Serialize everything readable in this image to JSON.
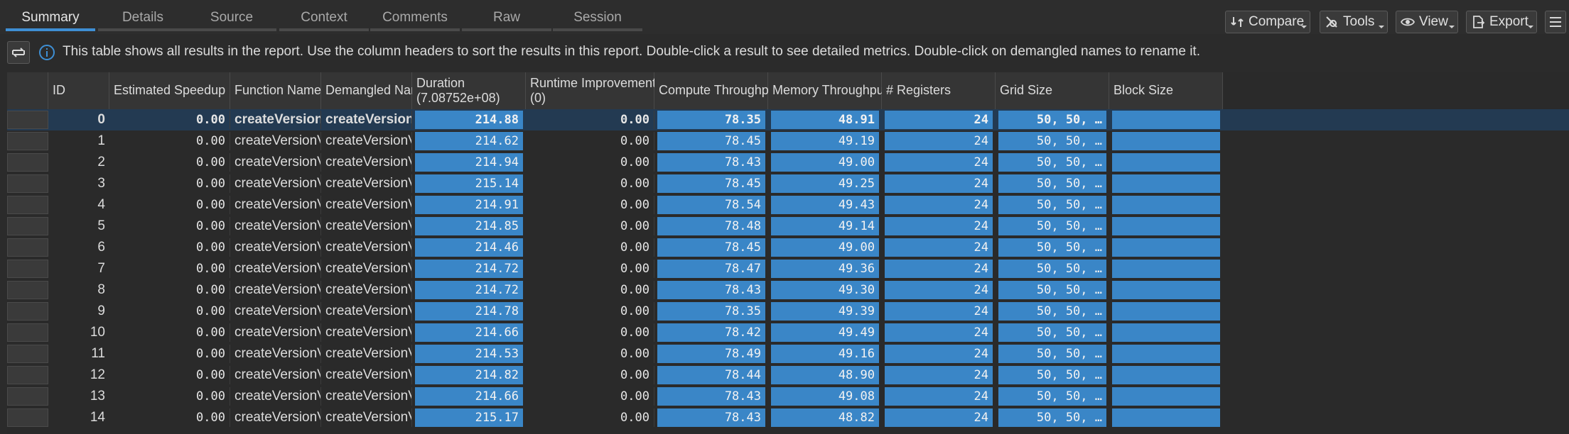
{
  "tabs": [
    {
      "label": "Summary",
      "active": true
    },
    {
      "label": "Details",
      "active": false
    },
    {
      "label": "Source",
      "active": false
    },
    {
      "label": "Context",
      "active": false
    },
    {
      "label": "Comments",
      "active": false
    },
    {
      "label": "Raw",
      "active": false
    },
    {
      "label": "Session",
      "active": false
    }
  ],
  "toolbar": {
    "compare": "Compare",
    "tools": "Tools",
    "view": "View",
    "export": "Export"
  },
  "info_text": "This table shows all results in the report. Use the column headers to sort the results in this report. Double-click a result to see detailed metrics. Double-click on demangled names to rename it.",
  "columns": [
    {
      "key": "id",
      "l1": "ID"
    },
    {
      "key": "speedup",
      "l1": "Estimated Speedup"
    },
    {
      "key": "func",
      "l1": "Function Name"
    },
    {
      "key": "demangled",
      "l1": "Demangled Name"
    },
    {
      "key": "duration",
      "l1": "Duration",
      "l2": "(7.08752e+08)"
    },
    {
      "key": "runtime",
      "l1": "Runtime Improvement",
      "l2": "(0)"
    },
    {
      "key": "compute",
      "l1": "Compute Throughput"
    },
    {
      "key": "memory",
      "l1": "Memory Throughput"
    },
    {
      "key": "registers",
      "l1": "# Registers"
    },
    {
      "key": "grid",
      "l1": "Grid Size"
    },
    {
      "key": "block",
      "l1": "Block Size"
    }
  ],
  "rows": [
    {
      "id": "0",
      "speedup": "0.00",
      "func": "createVersionVisu...",
      "demangled": "createVersionVisu...",
      "duration": "214.88",
      "runtime": "0.00",
      "compute": "78.35",
      "memory": "48.91",
      "registers": "24",
      "grid": "50,   50,   …"
    },
    {
      "id": "1",
      "speedup": "0.00",
      "func": "createVersionVisua...",
      "demangled": "createVersionVisua...",
      "duration": "214.62",
      "runtime": "0.00",
      "compute": "78.45",
      "memory": "49.19",
      "registers": "24",
      "grid": "50,   50,   …"
    },
    {
      "id": "2",
      "speedup": "0.00",
      "func": "createVersionVisua...",
      "demangled": "createVersionVisua...",
      "duration": "214.94",
      "runtime": "0.00",
      "compute": "78.43",
      "memory": "49.00",
      "registers": "24",
      "grid": "50,   50,   …"
    },
    {
      "id": "3",
      "speedup": "0.00",
      "func": "createVersionVisua...",
      "demangled": "createVersionVisua...",
      "duration": "215.14",
      "runtime": "0.00",
      "compute": "78.45",
      "memory": "49.25",
      "registers": "24",
      "grid": "50,   50,   …"
    },
    {
      "id": "4",
      "speedup": "0.00",
      "func": "createVersionVisua...",
      "demangled": "createVersionVisua...",
      "duration": "214.91",
      "runtime": "0.00",
      "compute": "78.54",
      "memory": "49.43",
      "registers": "24",
      "grid": "50,   50,   …"
    },
    {
      "id": "5",
      "speedup": "0.00",
      "func": "createVersionVisua...",
      "demangled": "createVersionVisua...",
      "duration": "214.85",
      "runtime": "0.00",
      "compute": "78.48",
      "memory": "49.14",
      "registers": "24",
      "grid": "50,   50,   …"
    },
    {
      "id": "6",
      "speedup": "0.00",
      "func": "createVersionVisua...",
      "demangled": "createVersionVisua...",
      "duration": "214.46",
      "runtime": "0.00",
      "compute": "78.45",
      "memory": "49.00",
      "registers": "24",
      "grid": "50,   50,   …"
    },
    {
      "id": "7",
      "speedup": "0.00",
      "func": "createVersionVisua...",
      "demangled": "createVersionVisua...",
      "duration": "214.72",
      "runtime": "0.00",
      "compute": "78.47",
      "memory": "49.36",
      "registers": "24",
      "grid": "50,   50,   …"
    },
    {
      "id": "8",
      "speedup": "0.00",
      "func": "createVersionVisua...",
      "demangled": "createVersionVisua...",
      "duration": "214.72",
      "runtime": "0.00",
      "compute": "78.43",
      "memory": "49.30",
      "registers": "24",
      "grid": "50,   50,   …"
    },
    {
      "id": "9",
      "speedup": "0.00",
      "func": "createVersionVisua...",
      "demangled": "createVersionVisua...",
      "duration": "214.78",
      "runtime": "0.00",
      "compute": "78.35",
      "memory": "49.39",
      "registers": "24",
      "grid": "50,   50,   …"
    },
    {
      "id": "10",
      "speedup": "0.00",
      "func": "createVersionVisua...",
      "demangled": "createVersionVisua...",
      "duration": "214.66",
      "runtime": "0.00",
      "compute": "78.42",
      "memory": "49.49",
      "registers": "24",
      "grid": "50,   50,   …"
    },
    {
      "id": "11",
      "speedup": "0.00",
      "func": "createVersionVisua...",
      "demangled": "createVersionVisua...",
      "duration": "214.53",
      "runtime": "0.00",
      "compute": "78.49",
      "memory": "49.16",
      "registers": "24",
      "grid": "50,   50,   …"
    },
    {
      "id": "12",
      "speedup": "0.00",
      "func": "createVersionVisua...",
      "demangled": "createVersionVisua...",
      "duration": "214.82",
      "runtime": "0.00",
      "compute": "78.44",
      "memory": "48.90",
      "registers": "24",
      "grid": "50,   50,   …"
    },
    {
      "id": "13",
      "speedup": "0.00",
      "func": "createVersionVisua...",
      "demangled": "createVersionVisua...",
      "duration": "214.66",
      "runtime": "0.00",
      "compute": "78.43",
      "memory": "49.08",
      "registers": "24",
      "grid": "50,   50,   …"
    },
    {
      "id": "14",
      "speedup": "0.00",
      "func": "createVersionVisua...",
      "demangled": "createVersionVisua...",
      "duration": "215.17",
      "runtime": "0.00",
      "compute": "78.43",
      "memory": "48.82",
      "registers": "24",
      "grid": "50,   50,   …"
    }
  ],
  "selected_row": 0,
  "colors": {
    "accent": "#3e8fd4",
    "bar": "#3a86c7",
    "selected_row": "#233a52"
  }
}
